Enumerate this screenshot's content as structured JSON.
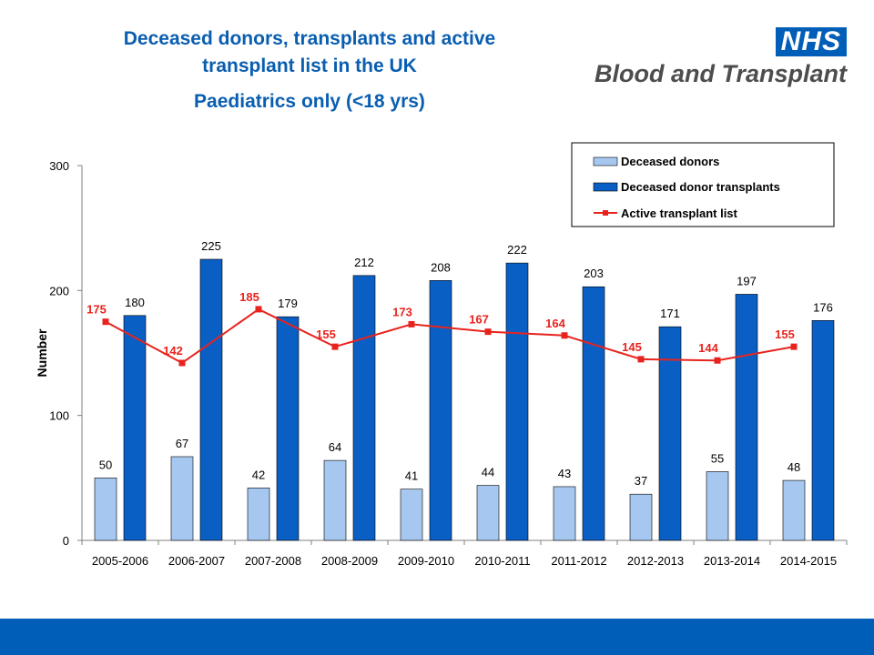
{
  "header": {
    "title_line1": "Deceased donors, transplants and active",
    "title_line2": "transplant list in the UK",
    "subtitle": "Paediatrics only (<18 yrs)"
  },
  "logo": {
    "badge": "NHS",
    "name": "Blood and Transplant"
  },
  "chart_data": {
    "type": "bar",
    "categories": [
      "2005-2006",
      "2006-2007",
      "2007-2008",
      "2008-2009",
      "2009-2010",
      "2010-2011",
      "2011-2012",
      "2012-2013",
      "2013-2014",
      "2014-2015"
    ],
    "series": [
      {
        "name": "Deceased donors",
        "kind": "bar",
        "color": "#a6c8f0",
        "values": [
          50,
          67,
          42,
          64,
          41,
          44,
          43,
          37,
          55,
          48
        ]
      },
      {
        "name": "Deceased donor transplants",
        "kind": "bar",
        "color": "#0a5fc4",
        "values": [
          180,
          225,
          179,
          212,
          208,
          222,
          203,
          171,
          197,
          176
        ]
      },
      {
        "name": "Active transplant list",
        "kind": "line",
        "color": "#e8231e",
        "values": [
          175,
          142,
          185,
          155,
          173,
          167,
          164,
          145,
          144,
          155
        ]
      }
    ],
    "ylabel": "Number",
    "ylim": [
      0,
      300
    ],
    "yticks": [
      0,
      100,
      200,
      300
    ],
    "legend_position": "top-right",
    "grid": false
  },
  "colors": {
    "title": "#0a5eb0",
    "brand_blue": "#005eb8",
    "line_label": "#e8231e"
  }
}
